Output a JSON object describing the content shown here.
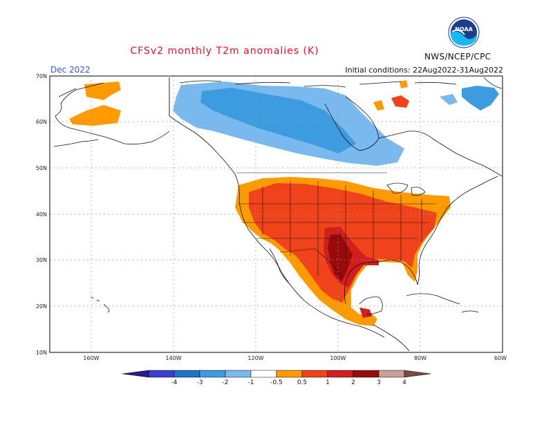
{
  "header": {
    "title": "CFSv2 monthly T2m anomalies (K)",
    "valid_month": "Dec 2022",
    "initial_conditions": "Initial conditions: 22Aug2022-31Aug2022",
    "agency": "NWS/NCEP/CPC",
    "logo_text": "NOAA"
  },
  "map": {
    "lat_labels": [
      "70N",
      "60N",
      "50N",
      "40N",
      "30N",
      "20N",
      "10N"
    ],
    "lon_labels": [
      "160W",
      "140W",
      "120W",
      "100W",
      "80W",
      "60W"
    ]
  },
  "colorbar": {
    "labels": [
      "-4",
      "-3",
      "-2",
      "-1",
      "-0.5",
      "0.5",
      "1",
      "2",
      "3",
      "4"
    ],
    "colors": [
      "#2a1a8a",
      "#3c3cd0",
      "#1e73c8",
      "#3d9be0",
      "#7ab9ee",
      "#ffffff",
      "#ff9b00",
      "#f0431c",
      "#cf1f1f",
      "#9a0a0a",
      "#c9a099",
      "#7b4a40"
    ]
  }
}
